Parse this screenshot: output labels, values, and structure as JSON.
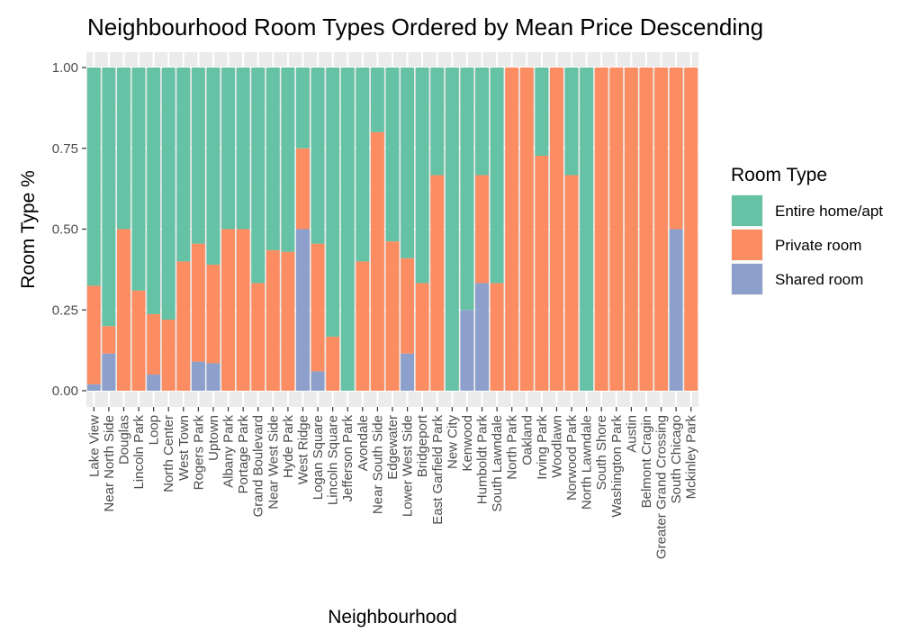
{
  "chart_data": {
    "type": "bar",
    "stacked": true,
    "title": "Neighbourhood Room Types Ordered by Mean Price Descending",
    "xlabel": "Neighbourhood",
    "ylabel": "Room Type %",
    "ylim": [
      0,
      1
    ],
    "yticks": [
      "0.00",
      "0.25",
      "0.50",
      "0.75",
      "1.00"
    ],
    "grid": true,
    "legend": {
      "title": "Room Type",
      "position": "right"
    },
    "categories": [
      "Lake View",
      "Near North Side",
      "Douglas",
      "Lincoln Park",
      "Loop",
      "North Center",
      "West Town",
      "Rogers Park",
      "Uptown",
      "Albany Park",
      "Portage Park",
      "Grand Boulevard",
      "Near West Side",
      "Hyde Park",
      "West Ridge",
      "Logan Square",
      "Lincoln Square",
      "Jefferson Park",
      "Avondale",
      "Near South Side",
      "Edgewater",
      "Lower West Side",
      "Bridgeport",
      "East Garfield Park",
      "New City",
      "Kenwood",
      "Humboldt Park",
      "South Lawndale",
      "North Park",
      "Oakland",
      "Irving Park",
      "Woodlawn",
      "Norwood Park",
      "North Lawndale",
      "South Shore",
      "Washington Park",
      "Austin",
      "Belmont Cragin",
      "Greater Grand Crossing",
      "South Chicago",
      "Mckinley Park"
    ],
    "series": [
      {
        "name": "Shared room",
        "color": "#8da0cb",
        "values": [
          0.02,
          0.115,
          0,
          0,
          0.05,
          0,
          0,
          0.09,
          0.085,
          0,
          0,
          0,
          0,
          0,
          0.5,
          0.06,
          0,
          0,
          0,
          0,
          0,
          0.115,
          0,
          0,
          0,
          0.25,
          0.333,
          0,
          0,
          0,
          0,
          0,
          0,
          0,
          0,
          0,
          0,
          0,
          0,
          0.5,
          0
        ]
      },
      {
        "name": "Private room",
        "color": "#fc8d62",
        "values": [
          0.305,
          0.085,
          0.5,
          0.31,
          0.187,
          0.22,
          0.4,
          0.365,
          0.305,
          0.5,
          0.5,
          0.333,
          0.435,
          0.43,
          0.25,
          0.395,
          0.167,
          0,
          0.4,
          0.8,
          0.462,
          0.295,
          0.333,
          0.667,
          0,
          0,
          0.334,
          0.333,
          1,
          1,
          0.727,
          1,
          0.667,
          0,
          1,
          1,
          1,
          1,
          1,
          0.5,
          1
        ]
      },
      {
        "name": "Entire home/apt",
        "color": "#66c2a5",
        "values": [
          0.675,
          0.8,
          0.5,
          0.69,
          0.763,
          0.78,
          0.6,
          0.545,
          0.61,
          0.5,
          0.5,
          0.667,
          0.565,
          0.57,
          0.25,
          0.545,
          0.833,
          1,
          0.6,
          0.2,
          0.538,
          0.59,
          0.667,
          0.333,
          1,
          0.75,
          0.333,
          0.667,
          0,
          0,
          0.273,
          0,
          0.333,
          1,
          0,
          0,
          0,
          0,
          0,
          0,
          0
        ]
      }
    ],
    "legend_order": [
      "Entire home/apt",
      "Private room",
      "Shared room"
    ]
  }
}
